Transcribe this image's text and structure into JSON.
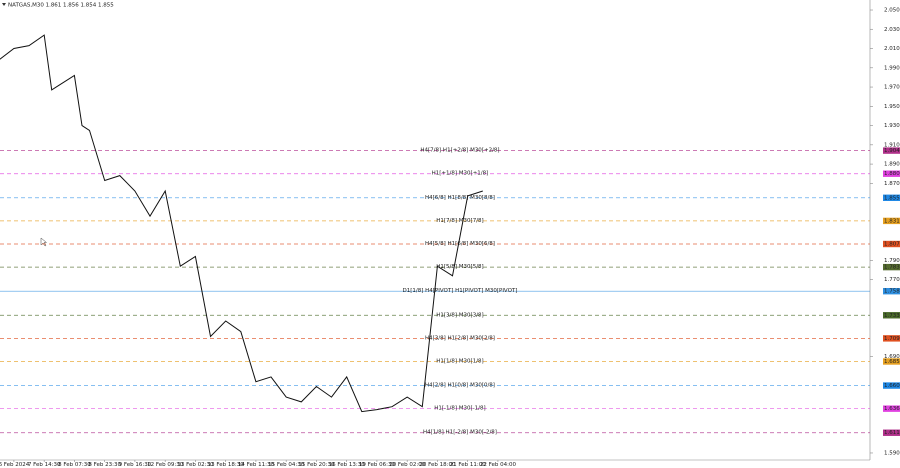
{
  "chart_data": {
    "type": "line",
    "title": "NATGAS,M30  1.861 1.856 1.854 1.855",
    "categories": [
      "6 Feb 2024",
      "7 Feb 14:30",
      "8 Feb 07:30",
      "8 Feb 23:30",
      "9 Feb 16:30",
      "12 Feb 09:30",
      "13 Feb 02:30",
      "13 Feb 18:30",
      "14 Feb 11:30",
      "15 Feb 04:30",
      "15 Feb 20:30",
      "16 Feb 13:30",
      "19 Feb 06:30",
      "20 Feb 02:00",
      "20 Feb 18:00",
      "21 Feb 11:00",
      "22 Feb 04:00"
    ],
    "x": [
      -0.5,
      0,
      0.5,
      1,
      1.25,
      1.5,
      2,
      2.25,
      2.5,
      3,
      3.5,
      4,
      4.5,
      5,
      5.5,
      6,
      6.5,
      7,
      7.5,
      8,
      8.5,
      9,
      9.5,
      10,
      10.5,
      11,
      11.5,
      12,
      12.5,
      13,
      13.5,
      14,
      14.5,
      15,
      15.5
    ],
    "series": [
      {
        "name": "NATGAS",
        "color": "#111111",
        "values": [
          1.998,
          2.01,
          2.013,
          2.024,
          1.967,
          1.972,
          1.982,
          1.93,
          1.925,
          1.873,
          1.878,
          1.862,
          1.836,
          1.862,
          1.784,
          1.794,
          1.711,
          1.727,
          1.716,
          1.664,
          1.669,
          1.648,
          1.643,
          1.659,
          1.648,
          1.669,
          1.633,
          1.635,
          1.638,
          1.648,
          1.638,
          1.784,
          1.774,
          1.857,
          1.862
        ]
      }
    ],
    "xlim": [
      -0.46,
      28.3
    ],
    "ylim": [
      1.5827,
      2.0604
    ],
    "yticks": [
      {
        "value": 1.59,
        "label": "1.590"
      },
      {
        "value": 1.69,
        "label": "1.690"
      },
      {
        "value": 1.77,
        "label": "1.770"
      },
      {
        "value": 1.79,
        "label": "1.790"
      },
      {
        "value": 1.87,
        "label": "1.870"
      },
      {
        "value": 1.89,
        "label": "1.890"
      },
      {
        "value": 1.91,
        "label": "1.910"
      },
      {
        "value": 1.93,
        "label": "1.930"
      },
      {
        "value": 1.95,
        "label": "1.950"
      },
      {
        "value": 1.97,
        "label": "1.970"
      },
      {
        "value": 1.99,
        "label": "1.990"
      },
      {
        "value": 2.01,
        "label": "2.010"
      },
      {
        "value": 2.03,
        "label": "2.030"
      },
      {
        "value": 2.05,
        "label": "2.050"
      }
    ],
    "levels": [
      {
        "label": "H4[7/8] H1[+2/8] M30[+2/8]",
        "value": 1.904,
        "value_label": "1.904",
        "color": "#b0308a",
        "style": "dashed"
      },
      {
        "label": "H1[+1/8] M30[+1/8]",
        "value": 1.88,
        "value_label": "1.880",
        "color": "#e040e0",
        "style": "dashed"
      },
      {
        "label": "H4[6/8] H1[8/8] M30[8/8]",
        "value": 1.855,
        "value_label": "1.855",
        "color": "#1e88e5",
        "style": "dashed"
      },
      {
        "label": "H1[7/8] M30[7/8]",
        "value": 1.831,
        "value_label": "1.831",
        "color": "#e6a020",
        "style": "dashed"
      },
      {
        "label": "H4[5/8] H1[6/8] M30[6/8]",
        "value": 1.807,
        "value_label": "1.807",
        "color": "#e05020",
        "style": "dashed"
      },
      {
        "label": "H1[5/8] M30[5/8]",
        "value": 1.783,
        "value_label": "1.783",
        "color": "#556b2f",
        "style": "dashed"
      },
      {
        "label": "D1[1/8] H4[PIVOT] H1[PIVOT] M30[PIVOT]",
        "value": 1.758,
        "value_label": "1.758",
        "color": "#2e8fe0",
        "style": "solid"
      },
      {
        "label": "H1[3/8] M30[3/8]",
        "value": 1.733,
        "value_label": "1.733",
        "color": "#4a6a2a",
        "style": "dashed"
      },
      {
        "label": "H4[3/8] H1[2/8] M30[2/8]",
        "value": 1.709,
        "value_label": "1.709",
        "color": "#e05020",
        "style": "dashed"
      },
      {
        "label": "H1[1/8] M30[1/8]",
        "value": 1.685,
        "value_label": "1.685",
        "color": "#e6a020",
        "style": "dashed"
      },
      {
        "label": "H4[2/8] H1[0/8] M30[0/8]",
        "value": 1.66,
        "value_label": "1.660",
        "color": "#1e88e5",
        "style": "dashed"
      },
      {
        "label": "H1[-1/8] M30[-1/8]",
        "value": 1.636,
        "value_label": "1.636",
        "color": "#e040e0",
        "style": "dashed"
      },
      {
        "label": "H4[1/8] H1[-2/8] M30[-2/8]",
        "value": 1.611,
        "value_label": "1.611",
        "color": "#b0308a",
        "style": "dashed"
      }
    ]
  }
}
